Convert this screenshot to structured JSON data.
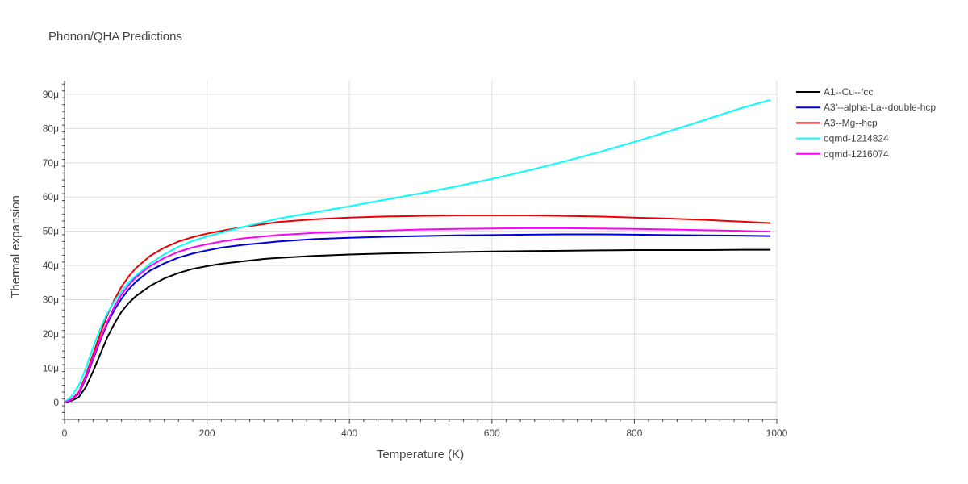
{
  "chart_data": {
    "type": "line",
    "title": "Phonon/QHA Predictions",
    "xlabel": "Temperature (K)",
    "ylabel": "Thermal expansion",
    "xlim": [
      0,
      1000
    ],
    "ylim": [
      -5,
      94
    ],
    "x_ticks": [
      0,
      200,
      400,
      600,
      800,
      1000
    ],
    "x_tick_labels": [
      "0",
      "200",
      "400",
      "600",
      "800",
      "1000"
    ],
    "y_ticks": [
      0,
      10,
      20,
      30,
      40,
      50,
      60,
      70,
      80,
      90
    ],
    "y_tick_labels": [
      "0",
      "10μ",
      "20μ",
      "30μ",
      "40μ",
      "50μ",
      "60μ",
      "70μ",
      "80μ",
      "90μ"
    ],
    "grid": true,
    "legend_position": "top-right",
    "series": [
      {
        "name": "A1--Cu--fcc",
        "color": "#000000",
        "x": [
          0,
          10,
          20,
          30,
          40,
          50,
          60,
          70,
          80,
          90,
          100,
          120,
          140,
          160,
          180,
          200,
          220,
          250,
          280,
          300,
          350,
          400,
          450,
          500,
          550,
          600,
          650,
          700,
          750,
          800,
          850,
          900,
          950,
          990
        ],
        "y": [
          0,
          0.5,
          1.5,
          4.5,
          9,
          14,
          19,
          23,
          26.5,
          29,
          31,
          34,
          36.2,
          37.8,
          39,
          39.8,
          40.5,
          41.2,
          41.9,
          42.2,
          42.8,
          43.2,
          43.5,
          43.7,
          43.9,
          44.1,
          44.2,
          44.3,
          44.4,
          44.5,
          44.5,
          44.5,
          44.6,
          44.6
        ]
      },
      {
        "name": "A3'--alpha-La--double-hcp",
        "color": "#0000dd",
        "x": [
          0,
          10,
          20,
          30,
          40,
          50,
          60,
          70,
          80,
          90,
          100,
          120,
          140,
          160,
          180,
          200,
          220,
          250,
          280,
          300,
          350,
          400,
          450,
          500,
          550,
          600,
          650,
          700,
          750,
          800,
          850,
          900,
          950,
          990
        ],
        "y": [
          0,
          0.8,
          2.5,
          7,
          12.5,
          18,
          23,
          27,
          30.3,
          33,
          35.2,
          38.5,
          40.6,
          42.3,
          43.5,
          44.4,
          45.2,
          46,
          46.6,
          47,
          47.7,
          48.1,
          48.4,
          48.6,
          48.8,
          48.9,
          49,
          49.1,
          49.1,
          49,
          48.9,
          48.8,
          48.7,
          48.6
        ]
      },
      {
        "name": "A3--Mg--hcp",
        "color": "#ee0000",
        "x": [
          0,
          10,
          20,
          30,
          40,
          50,
          60,
          70,
          80,
          90,
          100,
          120,
          140,
          160,
          180,
          200,
          220,
          250,
          280,
          300,
          350,
          400,
          450,
          500,
          550,
          600,
          650,
          700,
          750,
          800,
          850,
          900,
          950,
          990
        ],
        "y": [
          0,
          0.9,
          3,
          8,
          14,
          20,
          25.5,
          30,
          33.8,
          36.8,
          39.2,
          42.8,
          45.2,
          47,
          48.3,
          49.3,
          50.1,
          51.2,
          52.1,
          52.7,
          53.5,
          54,
          54.3,
          54.5,
          54.6,
          54.6,
          54.6,
          54.5,
          54.3,
          54,
          53.7,
          53.3,
          52.8,
          52.4
        ]
      },
      {
        "name": "oqmd-1214824",
        "color": "#00ffff",
        "x": [
          0,
          10,
          20,
          30,
          40,
          50,
          60,
          70,
          80,
          90,
          100,
          120,
          140,
          160,
          180,
          200,
          220,
          250,
          280,
          300,
          350,
          400,
          450,
          500,
          550,
          600,
          650,
          700,
          750,
          800,
          850,
          900,
          950,
          990
        ],
        "y": [
          0,
          1.8,
          5,
          10,
          16,
          21.5,
          26,
          29.5,
          32.5,
          35,
          37,
          40.5,
          43.3,
          45.5,
          47.2,
          48.5,
          49.6,
          51.2,
          52.7,
          53.7,
          55.5,
          57.3,
          59.2,
          61.1,
          63.1,
          65.3,
          67.7,
          70.3,
          73.1,
          76.1,
          79.3,
          82.6,
          86,
          88.3
        ]
      },
      {
        "name": "oqmd-1216074",
        "color": "#ff00ff",
        "x": [
          0,
          10,
          20,
          30,
          40,
          50,
          60,
          70,
          80,
          90,
          100,
          120,
          140,
          160,
          180,
          200,
          220,
          250,
          280,
          300,
          350,
          400,
          450,
          500,
          550,
          600,
          650,
          700,
          750,
          800,
          850,
          900,
          950,
          990
        ],
        "y": [
          0,
          0.8,
          2.8,
          7.5,
          13,
          18.5,
          23.5,
          28,
          31.5,
          34.2,
          36.5,
          39.8,
          42.2,
          44,
          45.3,
          46.2,
          47,
          47.9,
          48.5,
          48.9,
          49.5,
          49.9,
          50.2,
          50.5,
          50.7,
          50.8,
          50.9,
          50.9,
          50.8,
          50.7,
          50.5,
          50.3,
          50.1,
          49.9
        ]
      }
    ]
  }
}
